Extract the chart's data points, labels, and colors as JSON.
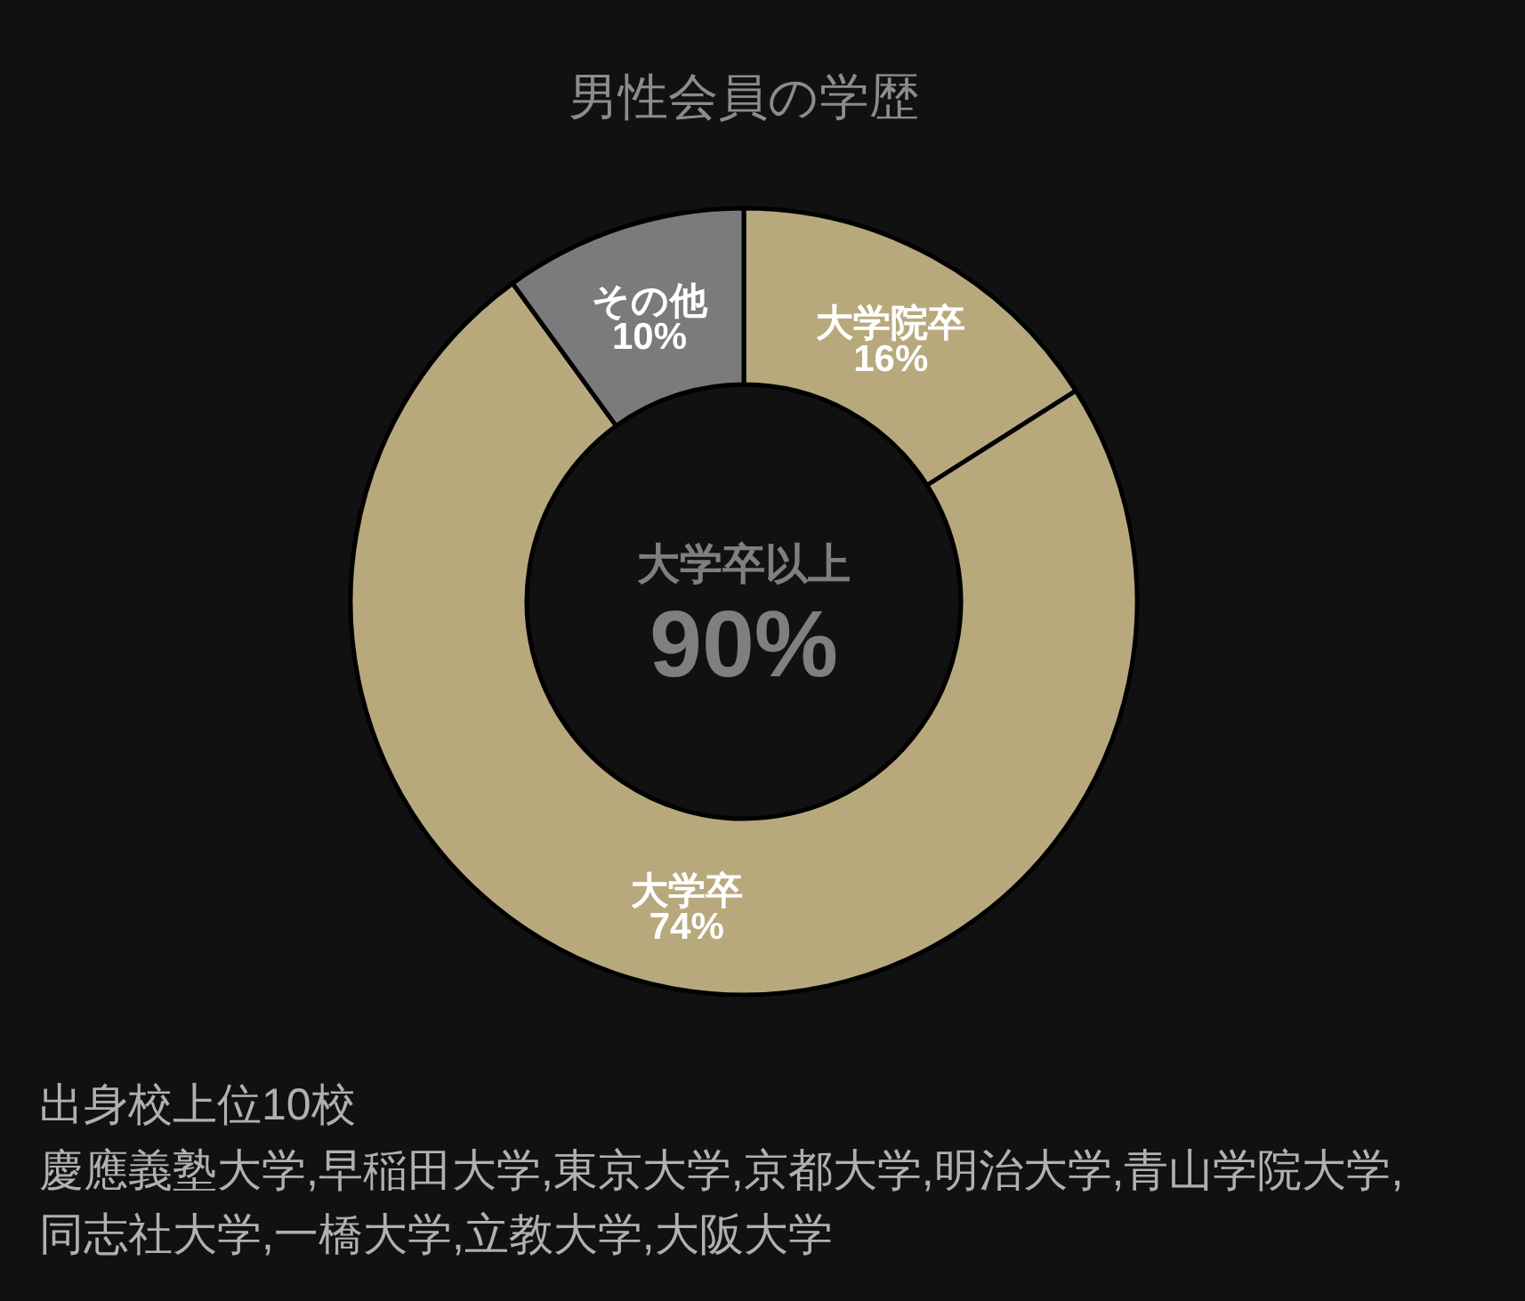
{
  "chart_data": {
    "type": "donut",
    "title": "男性会員の学歴",
    "categories": [
      "大学院卒",
      "大学卒",
      "その他"
    ],
    "values": [
      16,
      74,
      10
    ],
    "colors": [
      "#b8a97d",
      "#b8a97d",
      "#7b7b7b"
    ],
    "value_labels": [
      "16%",
      "74%",
      "10%"
    ],
    "annotations": [
      "大学卒以上",
      "90%",
      "出身校上位10校",
      "慶應義塾大学,早稲田大学,東京大学,京都大学,明治大学,青山学院大学,同志社大学,一橋大学,立教大学,大阪大学"
    ]
  }
}
